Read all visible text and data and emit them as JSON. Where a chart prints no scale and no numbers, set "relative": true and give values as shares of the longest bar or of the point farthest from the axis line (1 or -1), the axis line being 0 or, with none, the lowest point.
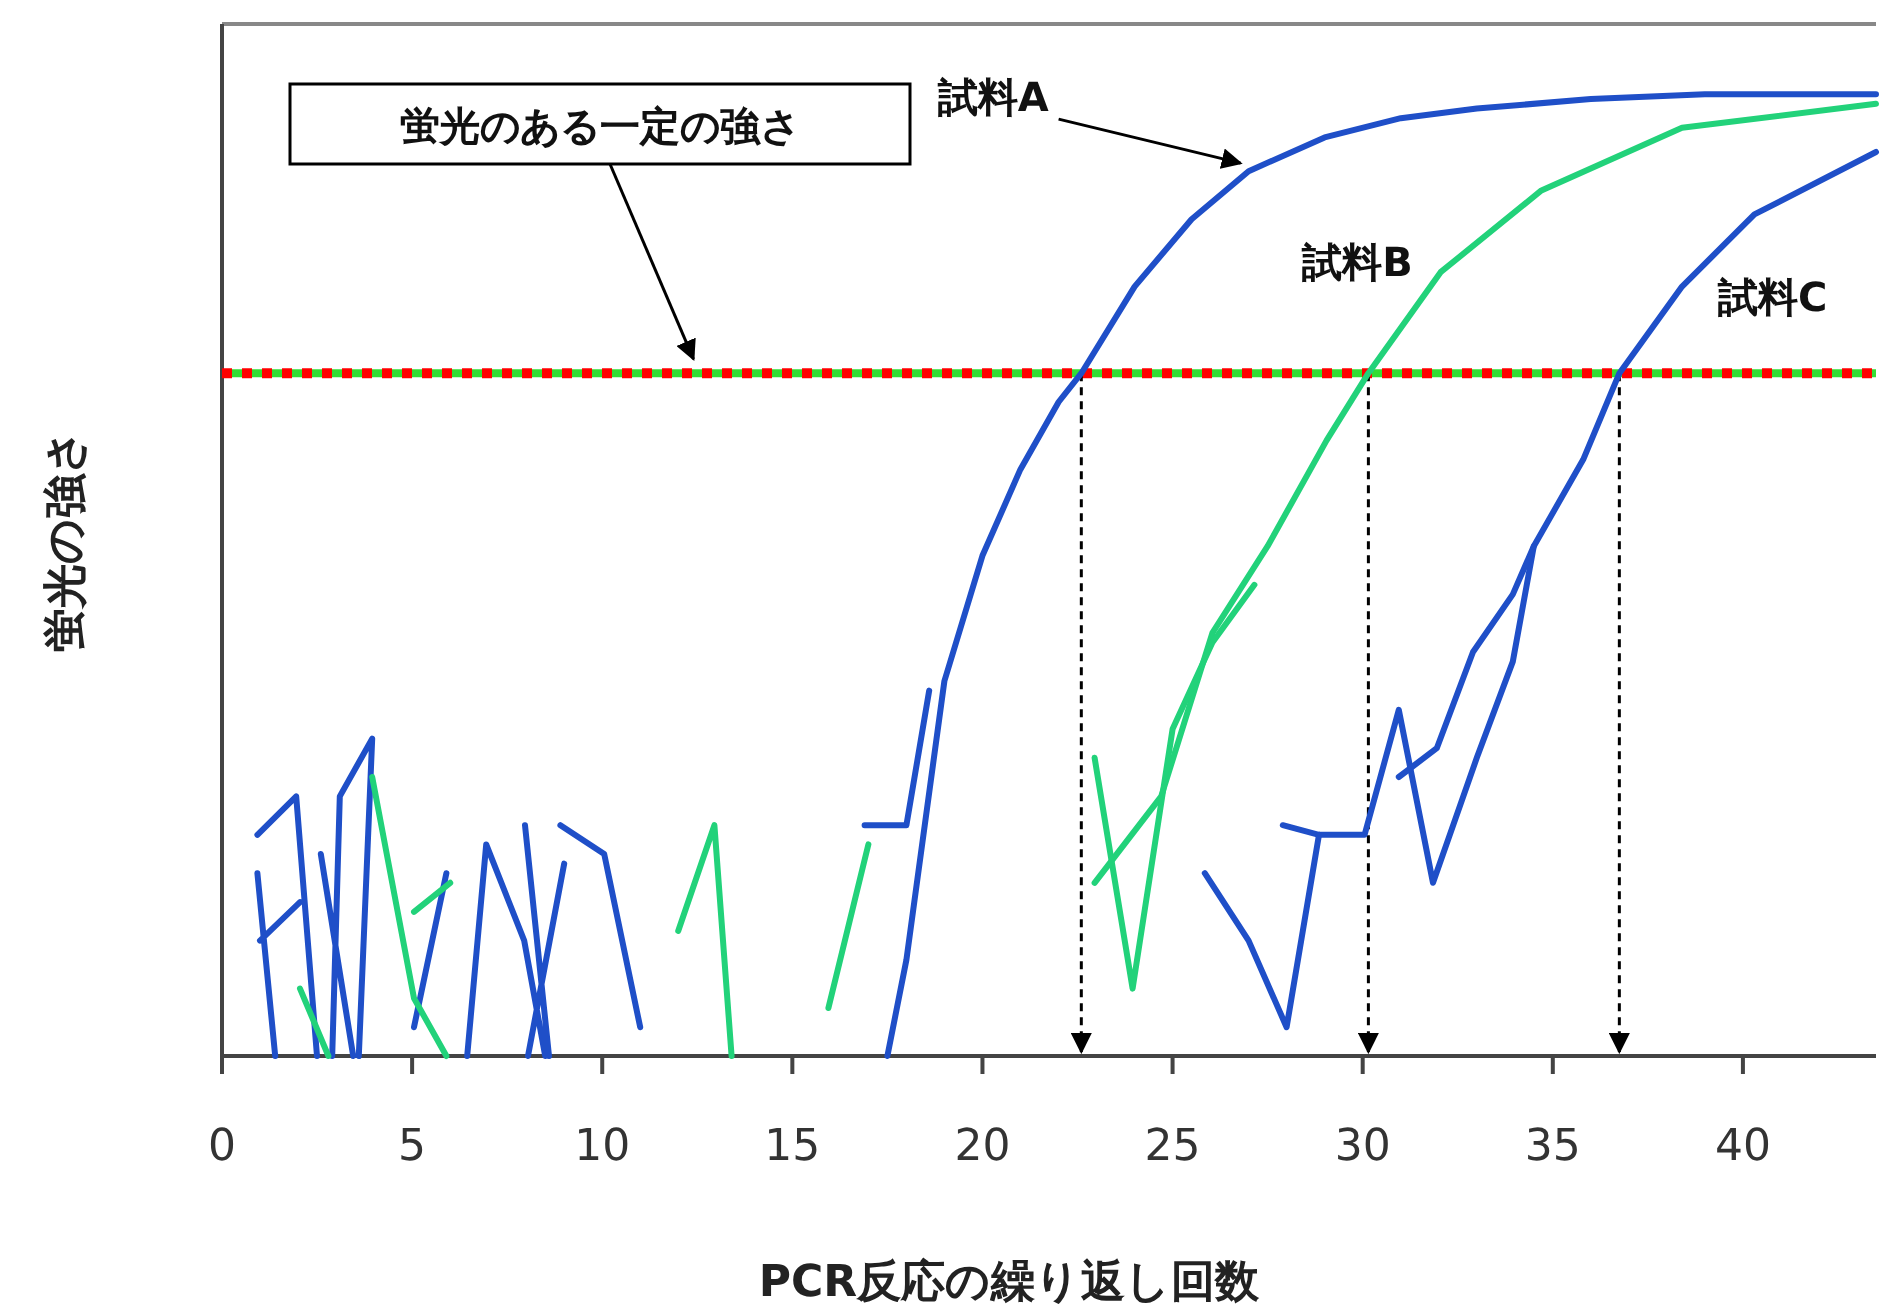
{
  "chart_data": {
    "type": "line",
    "relative": true,
    "xlabel": "PCR反応の繰り返し回数",
    "ylabel": "蛍光の強さ",
    "xlim": [
      0,
      43.5
    ],
    "xticks": [
      0,
      5,
      10,
      15,
      20,
      25,
      30,
      35,
      40
    ],
    "grid": false,
    "marker": "none",
    "line_style": "solid",
    "series": [
      {
        "color": "#1f4fc8",
        "x": [
          17.5,
          18,
          19,
          20,
          21,
          22,
          22.6,
          24,
          25.5,
          27,
          29,
          31,
          33,
          36,
          39,
          43.5
        ],
        "values": [
          0,
          0.1,
          0.39,
          0.52,
          0.61,
          0.68,
          0.71,
          0.8,
          0.87,
          0.92,
          0.955,
          0.975,
          0.985,
          0.995,
          1,
          1
        ]
      },
      {
        "color": "#22d27a",
        "x": [
          22.95,
          24.7,
          26.05,
          27.5,
          29.05,
          30.15,
          32.05,
          34.7,
          38.4,
          43.5
        ],
        "values": [
          0.18,
          0.27,
          0.44,
          0.53,
          0.64,
          0.71,
          0.815,
          0.9,
          0.965,
          0.99
        ]
      },
      {
        "color": "#1f4fc8",
        "x": [
          27.9,
          28.85,
          30.05,
          30.95,
          31.85,
          33,
          33.95,
          34.5,
          35.8,
          36.75,
          38.4,
          40.3,
          43.5
        ],
        "values": [
          0.24,
          0.23,
          0.23,
          0.36,
          0.18,
          0.31,
          0.41,
          0.53,
          0.62,
          0.71,
          0.8,
          0.875,
          0.94
        ]
      },
      {
        "color": "#1f4fc8",
        "x": [
          0.93,
          1.95,
          2.5,
          null,
          0.93,
          1.4,
          null,
          1.0,
          2.05,
          null,
          2.9,
          3.1,
          3.95,
          3.6,
          null,
          2.6,
          3.45,
          null,
          5.05,
          5.9,
          null,
          6.45,
          6.95,
          7.95,
          8.5,
          null,
          7.97,
          8.6,
          null,
          8.05,
          9.0,
          null,
          8.9,
          10.05,
          11.0,
          null,
          16.9,
          18.0,
          18.6,
          null,
          25.85,
          27.0,
          28.0,
          28.85,
          null,
          30.95,
          31.95,
          32.9,
          33.95,
          34.5
        ],
        "values": [
          0.23,
          0.27,
          0,
          null,
          0.19,
          0,
          null,
          0.12,
          0.16,
          null,
          0,
          0.27,
          0.33,
          0,
          null,
          0.21,
          0,
          null,
          0.03,
          0.19,
          null,
          0,
          0.22,
          0.12,
          0,
          null,
          0.24,
          0,
          null,
          0,
          0.2,
          null,
          0.24,
          0.21,
          0.03,
          null,
          0.24,
          0.24,
          0.38,
          null,
          0.19,
          0.12,
          0.03,
          0.23,
          null,
          0.29,
          0.32,
          0.42,
          0.48,
          0.53
        ]
      },
      {
        "color": "#22d27a",
        "x": [
          2.05,
          2.8,
          null,
          3.95,
          5.05,
          5.9,
          null,
          5.05,
          6.0,
          null,
          12.0,
          12.95,
          13.4,
          null,
          15.95,
          17.0,
          null,
          22.95,
          23.95,
          25.0,
          26.05,
          27.15
        ],
        "values": [
          0.07,
          0,
          null,
          0.29,
          0.06,
          0,
          null,
          0.15,
          0.18,
          null,
          0.13,
          0.24,
          0,
          null,
          0.05,
          0.22,
          null,
          0.31,
          0.07,
          0.34,
          0.43,
          0.49
        ]
      }
    ],
    "ref_lines": [
      {
        "axis": "y",
        "value": 0.71,
        "color": "#33dd33",
        "line_style": "solid",
        "label": "蛍光のある一定の強さ"
      },
      {
        "axis": "y",
        "value": 0.71,
        "color": "#ff0000",
        "line_style": "dotted"
      },
      {
        "axis": "x",
        "value": 22.6,
        "color": "#000000",
        "line_style": "dashed"
      },
      {
        "axis": "x",
        "value": 30.15,
        "color": "#000000",
        "line_style": "dashed"
      },
      {
        "axis": "x",
        "value": 36.75,
        "color": "#000000",
        "line_style": "dashed"
      }
    ],
    "annotations": [
      {
        "text": "試料A",
        "x": 27,
        "y": 0.92
      },
      {
        "text": "試料B",
        "x": 32.05,
        "y": 0.815
      },
      {
        "text": "試料C",
        "x": 38.4,
        "y": 0.8
      }
    ]
  }
}
